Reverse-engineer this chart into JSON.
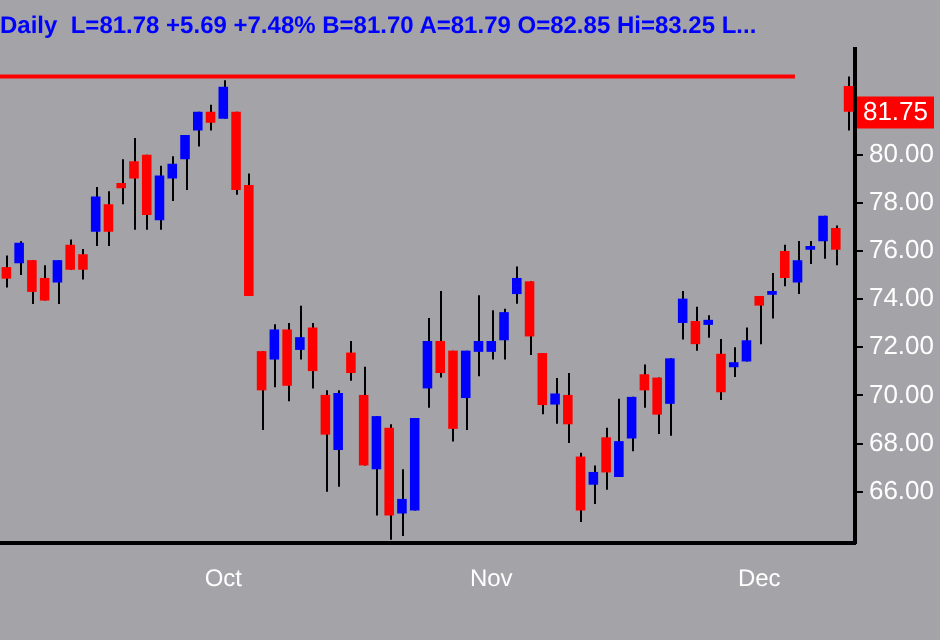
{
  "chart_data": {
    "type": "candlestick",
    "title": "Daily  L=81.78 +5.69 +7.48% B=81.70 A=81.79 O=82.85 Hi=83.25 L...",
    "categories": [
      null,
      null,
      null,
      null,
      null,
      null,
      null,
      null,
      null,
      null,
      null,
      null,
      null,
      null,
      null,
      null,
      null,
      "Oct",
      null,
      null,
      null,
      null,
      null,
      null,
      null,
      null,
      null,
      null,
      null,
      null,
      null,
      null,
      null,
      null,
      null,
      null,
      null,
      null,
      "Nov",
      null,
      null,
      null,
      null,
      null,
      null,
      null,
      null,
      null,
      null,
      null,
      null,
      null,
      null,
      null,
      null,
      null,
      null,
      null,
      null,
      "Dec",
      null,
      null,
      null,
      null,
      null,
      null,
      null
    ],
    "ohlc": [
      [
        75.33,
        75.81,
        74.48,
        74.85
      ],
      [
        75.49,
        76.4,
        75.0,
        76.34
      ],
      [
        75.62,
        75.62,
        73.8,
        74.3
      ],
      [
        74.88,
        75.41,
        73.94,
        73.94
      ],
      [
        74.69,
        75.62,
        73.8,
        75.62
      ],
      [
        76.26,
        76.48,
        75.22,
        75.22
      ],
      [
        75.86,
        76.08,
        74.82,
        75.22
      ],
      [
        76.8,
        78.66,
        76.21,
        78.26
      ],
      [
        77.94,
        78.48,
        76.21,
        76.8
      ],
      [
        78.82,
        79.81,
        77.94,
        78.61
      ],
      [
        79.73,
        80.69,
        76.88,
        79.01
      ],
      [
        80.0,
        80.0,
        76.88,
        77.49
      ],
      [
        77.28,
        79.54,
        76.88,
        79.14
      ],
      [
        79.01,
        79.94,
        78.08,
        79.62
      ],
      [
        79.81,
        80.82,
        78.53,
        80.82
      ],
      [
        81.01,
        81.78,
        80.34,
        81.78
      ],
      [
        81.78,
        82.08,
        81.01,
        81.33
      ],
      [
        81.49,
        83.09,
        81.49,
        82.82
      ],
      [
        81.78,
        81.78,
        78.34,
        78.53
      ],
      [
        78.74,
        79.22,
        74.13,
        74.13
      ],
      [
        71.84,
        71.84,
        68.56,
        70.21
      ],
      [
        71.49,
        72.96,
        70.34,
        72.74
      ],
      [
        72.74,
        73.01,
        69.76,
        70.4
      ],
      [
        71.89,
        73.73,
        71.49,
        72.42
      ],
      [
        72.82,
        73.01,
        70.29,
        71.01
      ],
      [
        70.02,
        70.21,
        66.0,
        68.37
      ],
      [
        67.73,
        70.21,
        66.21,
        70.1
      ],
      [
        71.78,
        72.26,
        70.61,
        70.93
      ],
      [
        70.02,
        71.19,
        67.09,
        67.09
      ],
      [
        66.93,
        69.14,
        65.01,
        69.14
      ],
      [
        68.66,
        68.8,
        64.0,
        65.01
      ],
      [
        65.09,
        66.93,
        64.16,
        65.7
      ],
      [
        65.22,
        69.06,
        65.22,
        69.06
      ],
      [
        70.29,
        73.22,
        69.49,
        72.26
      ],
      [
        72.26,
        74.34,
        70.74,
        70.93
      ],
      [
        71.86,
        71.86,
        68.08,
        68.61
      ],
      [
        69.89,
        71.86,
        68.56,
        71.86
      ],
      [
        71.81,
        74.16,
        70.8,
        72.26
      ],
      [
        71.81,
        73.54,
        71.49,
        72.26
      ],
      [
        72.29,
        73.6,
        71.49,
        73.46
      ],
      [
        74.21,
        75.36,
        73.81,
        74.88
      ],
      [
        74.74,
        74.74,
        71.68,
        72.45
      ],
      [
        71.76,
        71.76,
        69.22,
        69.6
      ],
      [
        69.62,
        70.72,
        68.82,
        70.08
      ],
      [
        70.02,
        70.93,
        68.02,
        68.8
      ],
      [
        67.46,
        67.62,
        64.74,
        65.22
      ],
      [
        66.29,
        67.09,
        65.49,
        66.82
      ],
      [
        68.26,
        68.66,
        66.08,
        66.8
      ],
      [
        66.61,
        69.86,
        66.61,
        68.1
      ],
      [
        68.21,
        69.94,
        67.68,
        69.94
      ],
      [
        70.88,
        71.28,
        69.49,
        70.21
      ],
      [
        70.74,
        70.74,
        68.4,
        69.2
      ],
      [
        69.65,
        71.54,
        68.32,
        71.54
      ],
      [
        73.01,
        74.34,
        72.32,
        74.02
      ],
      [
        73.09,
        73.68,
        71.86,
        72.13
      ],
      [
        72.93,
        73.33,
        72.4,
        73.14
      ],
      [
        71.73,
        72.34,
        69.81,
        70.13
      ],
      [
        71.17,
        72.0,
        70.77,
        71.38
      ],
      [
        71.41,
        72.82,
        71.41,
        72.29
      ],
      [
        74.13,
        74.13,
        72.13,
        73.73
      ],
      [
        74.18,
        75.09,
        73.2,
        74.34
      ],
      [
        76.0,
        76.26,
        74.53,
        74.88
      ],
      [
        74.69,
        76.42,
        74.21,
        75.62
      ],
      [
        76.05,
        76.42,
        75.46,
        76.21
      ],
      [
        76.4,
        77.46,
        75.68,
        77.46
      ],
      [
        76.96,
        77.06,
        75.41,
        76.05
      ],
      [
        82.85,
        83.25,
        81.01,
        81.78
      ]
    ],
    "colors": [
      "#ff0000",
      "#0000ff",
      "#ff0000",
      "#ff0000",
      "#0000ff",
      "#ff0000",
      "#ff0000",
      "#0000ff",
      "#ff0000",
      "#ff0000",
      "#ff0000",
      "#ff0000",
      "#0000ff",
      "#0000ff",
      "#0000ff",
      "#0000ff",
      "#ff0000",
      "#0000ff",
      "#ff0000",
      "#ff0000",
      "#ff0000",
      "#0000ff",
      "#ff0000",
      "#0000ff",
      "#ff0000",
      "#ff0000",
      "#0000ff",
      "#ff0000",
      "#ff0000",
      "#0000ff",
      "#ff0000",
      "#0000ff",
      "#0000ff",
      "#0000ff",
      "#ff0000",
      "#ff0000",
      "#0000ff",
      "#0000ff",
      "#0000ff",
      "#0000ff",
      "#0000ff",
      "#ff0000",
      "#ff0000",
      "#0000ff",
      "#ff0000",
      "#ff0000",
      "#0000ff",
      "#ff0000",
      "#0000ff",
      "#0000ff",
      "#ff0000",
      "#ff0000",
      "#0000ff",
      "#0000ff",
      "#ff0000",
      "#0000ff",
      "#ff0000",
      "#0000ff",
      "#0000ff",
      "#ff0000",
      "#0000ff",
      "#ff0000",
      "#0000ff",
      "#0000ff",
      "#0000ff",
      "#ff0000",
      "#ff0000"
    ],
    "ylim": [
      63.86,
      84.4
    ],
    "yticks": [
      {
        "value": 66,
        "label": "66.00"
      },
      {
        "value": 68,
        "label": "68.00"
      },
      {
        "value": 70,
        "label": "70.00"
      },
      {
        "value": 72,
        "label": "72.00"
      },
      {
        "value": 74,
        "label": "74.00"
      },
      {
        "value": 76,
        "label": "76.00"
      },
      {
        "value": 78,
        "label": "78.00"
      },
      {
        "value": 80,
        "label": "80.00"
      }
    ],
    "ref_lines": [
      {
        "axis": "y",
        "value": 83.25,
        "label": null,
        "color": "#ff0000"
      }
    ],
    "annotations": [
      {
        "text": "81.75",
        "y": 81.75
      }
    ],
    "grid": false
  }
}
